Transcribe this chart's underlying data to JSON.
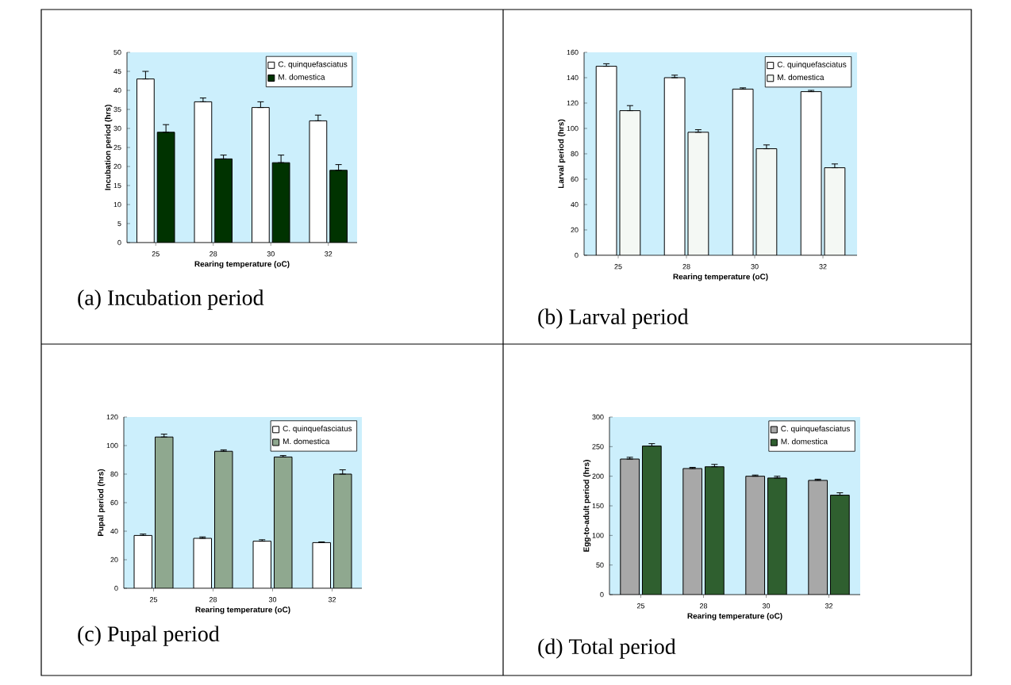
{
  "chart_data": [
    {
      "type": "bar",
      "title": "(a) Incubation period",
      "xlabel": "Rearing temperature (oC)",
      "ylabel": "Incubation period (hrs)",
      "categories": [
        "25",
        "28",
        "30",
        "32"
      ],
      "ylim": [
        0,
        50
      ],
      "yticks": [
        0,
        5,
        10,
        15,
        20,
        25,
        30,
        35,
        40,
        45,
        50
      ],
      "legend": "top right",
      "series": [
        {
          "name": "C. quinquefasciatus",
          "color": "#ffffff",
          "values": [
            43,
            37,
            35.5,
            32
          ],
          "errors": [
            [
              43,
              45
            ],
            [
              37,
              38
            ],
            [
              35.5,
              37
            ],
            [
              32,
              33.5
            ]
          ]
        },
        {
          "name": "M. domestica",
          "color": "#003300",
          "values": [
            29,
            22,
            21,
            19
          ],
          "errors": [
            [
              29,
              31
            ],
            [
              22,
              23
            ],
            [
              21,
              23
            ],
            [
              19,
              20.5
            ]
          ]
        }
      ]
    },
    {
      "type": "bar",
      "title": "(b) Larval period",
      "xlabel": "Rearing temperature (oC)",
      "ylabel": "Larval period (hrs)",
      "categories": [
        "25",
        "28",
        "30",
        "32"
      ],
      "ylim": [
        0,
        160
      ],
      "yticks": [
        0,
        20,
        40,
        60,
        80,
        100,
        120,
        140,
        160
      ],
      "legend": "top right",
      "series": [
        {
          "name": "C. quinquefasciatus",
          "color": "#ffffff",
          "values": [
            149,
            140,
            131,
            129
          ],
          "errors": [
            [
              149,
              151
            ],
            [
              140,
              142
            ],
            [
              131,
              132
            ],
            [
              129,
              130
            ]
          ]
        },
        {
          "name": "M. domestica",
          "color": "#f4f8f4",
          "values": [
            114,
            97,
            84,
            69
          ],
          "errors": [
            [
              114,
              118
            ],
            [
              97,
              99
            ],
            [
              84,
              87
            ],
            [
              69,
              72
            ]
          ]
        }
      ]
    },
    {
      "type": "bar",
      "title": "(c) Pupal period",
      "xlabel": "Rearing temperature (oC)",
      "ylabel": "Pupal period (hrs)",
      "categories": [
        "25",
        "28",
        "30",
        "32"
      ],
      "ylim": [
        0,
        120
      ],
      "yticks": [
        0,
        20,
        40,
        60,
        80,
        100,
        120
      ],
      "legend": "top right",
      "series": [
        {
          "name": "C. quinquefasciatus",
          "color": "#ffffff",
          "values": [
            37,
            35,
            33,
            32
          ],
          "errors": [
            [
              37,
              38
            ],
            [
              35,
              36
            ],
            [
              33,
              34
            ],
            [
              32,
              32.5
            ]
          ]
        },
        {
          "name": "M. domestica",
          "color": "#8fa88f",
          "values": [
            106,
            96,
            92,
            80
          ],
          "errors": [
            [
              106,
              108
            ],
            [
              96,
              97
            ],
            [
              92,
              93
            ],
            [
              80,
              83
            ]
          ]
        }
      ]
    },
    {
      "type": "bar",
      "title": "(d) Total period",
      "xlabel": "Rearing temperature (oC)",
      "ylabel": "Egg-to-adult period (hrs)",
      "categories": [
        "25",
        "28",
        "30",
        "32"
      ],
      "ylim": [
        0,
        300
      ],
      "yticks": [
        0,
        50,
        100,
        150,
        200,
        250,
        300
      ],
      "legend": "top right",
      "series": [
        {
          "name": "C. quinquefasciatus",
          "color": "#a8a8a8",
          "values": [
            229,
            213,
            200,
            193
          ],
          "errors": [
            [
              229,
              232
            ],
            [
              213,
              215
            ],
            [
              200,
              202
            ],
            [
              193,
              195
            ]
          ]
        },
        {
          "name": "M. domestica",
          "color": "#2f5f2f",
          "values": [
            251,
            216,
            197,
            168
          ],
          "errors": [
            [
              251,
              255
            ],
            [
              216,
              220
            ],
            [
              197,
              200
            ],
            [
              168,
              172
            ]
          ]
        }
      ]
    }
  ]
}
